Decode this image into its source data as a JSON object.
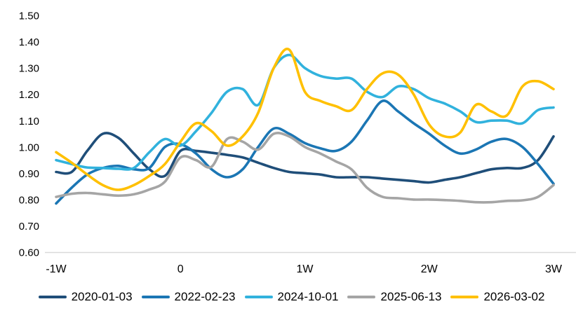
{
  "chart_data": {
    "type": "line",
    "title": "",
    "xlabel": "",
    "ylabel": "",
    "legend_position": "bottom",
    "grid": "none",
    "background": "#ffffff",
    "axis_line_color": "#d9d9d9",
    "text_color": "#000000",
    "y_axis": {
      "min": 0.6,
      "max": 1.5,
      "step": 0.1,
      "tick_labels": [
        "0.60",
        "0.70",
        "0.80",
        "0.90",
        "1.00",
        "1.10",
        "1.20",
        "1.30",
        "1.40",
        "1.50"
      ]
    },
    "x_axis": {
      "range_weeks": [
        -1,
        3
      ],
      "ticks": [
        {
          "label": "-1W",
          "week": -1
        },
        {
          "label": "0",
          "week": 0
        },
        {
          "label": "1W",
          "week": 1
        },
        {
          "label": "2W",
          "week": 2
        },
        {
          "label": "3W",
          "week": 3
        }
      ]
    },
    "x": [
      -1.0,
      -0.875,
      -0.75,
      -0.625,
      -0.5,
      -0.375,
      -0.25,
      -0.125,
      0.0,
      0.125,
      0.25,
      0.375,
      0.5,
      0.625,
      0.75,
      0.875,
      1.0,
      1.125,
      1.25,
      1.375,
      1.5,
      1.625,
      1.75,
      1.875,
      2.0,
      2.125,
      2.25,
      2.375,
      2.5,
      2.625,
      2.75,
      2.875,
      3.0
    ],
    "series": [
      {
        "name": "2020-01-03",
        "color": "#1f4e79",
        "values": [
          0.905,
          0.905,
          0.985,
          1.05,
          1.035,
          0.975,
          0.915,
          0.89,
          0.985,
          0.985,
          0.978,
          0.97,
          0.96,
          0.94,
          0.92,
          0.905,
          0.9,
          0.895,
          0.885,
          0.885,
          0.885,
          0.88,
          0.875,
          0.87,
          0.865,
          0.875,
          0.885,
          0.9,
          0.915,
          0.92,
          0.92,
          0.95,
          1.04
        ]
      },
      {
        "name": "2022-02-23",
        "color": "#1b76b4",
        "values": [
          0.785,
          0.845,
          0.895,
          0.92,
          0.928,
          0.915,
          0.92,
          1.0,
          1.01,
          0.975,
          0.915,
          0.885,
          0.915,
          1.0,
          1.07,
          1.05,
          1.015,
          0.995,
          0.985,
          1.02,
          1.1,
          1.175,
          1.135,
          1.09,
          1.05,
          1.005,
          0.975,
          0.99,
          1.02,
          1.03,
          1.0,
          0.935,
          0.86
        ]
      },
      {
        "name": "2024-10-01",
        "color": "#31b2dd",
        "values": [
          0.95,
          0.935,
          0.922,
          0.92,
          0.917,
          0.92,
          0.98,
          1.03,
          1.005,
          1.06,
          1.13,
          1.21,
          1.22,
          1.16,
          1.3,
          1.35,
          1.3,
          1.27,
          1.26,
          1.26,
          1.21,
          1.19,
          1.23,
          1.22,
          1.185,
          1.165,
          1.135,
          1.095,
          1.1,
          1.1,
          1.09,
          1.14,
          1.15
        ]
      },
      {
        "name": "2025-06-13",
        "color": "#a5a5a5",
        "values": [
          0.81,
          0.822,
          0.825,
          0.82,
          0.815,
          0.82,
          0.838,
          0.868,
          0.96,
          0.95,
          0.925,
          1.03,
          1.02,
          0.99,
          1.05,
          1.04,
          1.0,
          0.975,
          0.945,
          0.915,
          0.845,
          0.81,
          0.805,
          0.8,
          0.8,
          0.798,
          0.795,
          0.79,
          0.79,
          0.795,
          0.797,
          0.81,
          0.855
        ]
      },
      {
        "name": "2026-03-02",
        "color": "#ffc000",
        "values": [
          0.98,
          0.94,
          0.895,
          0.855,
          0.837,
          0.855,
          0.89,
          0.935,
          1.02,
          1.09,
          1.06,
          1.005,
          1.04,
          1.13,
          1.3,
          1.37,
          1.21,
          1.175,
          1.155,
          1.14,
          1.22,
          1.28,
          1.275,
          1.2,
          1.085,
          1.04,
          1.055,
          1.16,
          1.135,
          1.12,
          1.23,
          1.25,
          1.22
        ]
      }
    ]
  }
}
